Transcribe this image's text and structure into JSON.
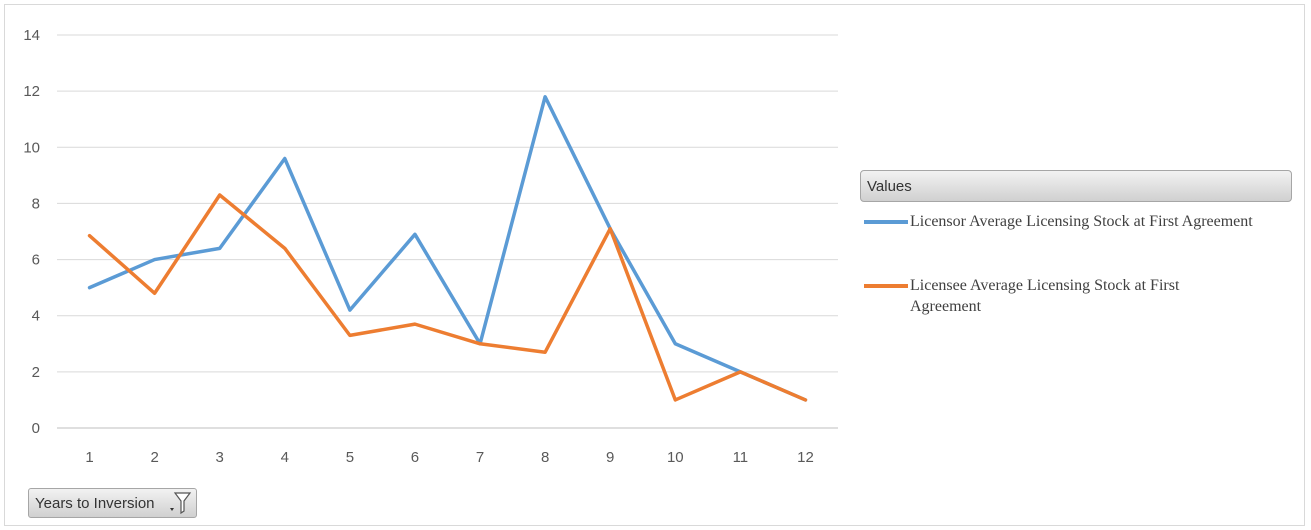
{
  "chart_data": {
    "type": "line",
    "categories": [
      "1",
      "2",
      "3",
      "4",
      "5",
      "6",
      "7",
      "8",
      "9",
      "10",
      "11",
      "12"
    ],
    "ylim": [
      0,
      14
    ],
    "yticks": [
      0,
      2,
      4,
      6,
      8,
      10,
      12,
      14
    ],
    "grid": true,
    "legend_position": "right",
    "legend_title": "Values",
    "series": [
      {
        "name": "Licensor Average Licensing Stock at First Agreement",
        "color": "#5b9bd5",
        "values": [
          5.0,
          6.0,
          6.4,
          9.6,
          4.2,
          6.9,
          3.0,
          11.8,
          7.1,
          3.0,
          2.0,
          1.0
        ]
      },
      {
        "name": "Licensee Average Licensing Stock at First Agreement",
        "color": "#ed7d31",
        "values": [
          6.85,
          4.8,
          8.3,
          6.4,
          3.3,
          3.7,
          3.0,
          2.7,
          7.1,
          1.0,
          2.0,
          1.0
        ]
      }
    ]
  },
  "field_button": {
    "label": "Years to Inversion",
    "icon": "filter-icon"
  }
}
